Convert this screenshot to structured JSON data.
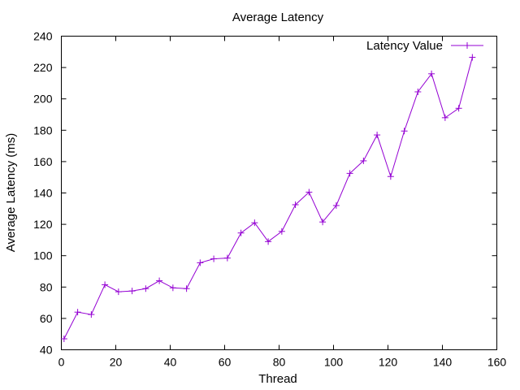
{
  "chart_data": {
    "type": "line",
    "title": "Average Latency",
    "xlabel": "Thread",
    "ylabel": "Average Latency (ms)",
    "xlim": [
      0,
      160
    ],
    "ylim": [
      40,
      240
    ],
    "x_ticks": [
      0,
      20,
      40,
      60,
      80,
      100,
      120,
      140,
      160
    ],
    "y_ticks": [
      40,
      60,
      80,
      100,
      120,
      140,
      160,
      180,
      200,
      220,
      240
    ],
    "grid": false,
    "legend_position": "top-right",
    "series": [
      {
        "name": "Latency Value",
        "color": "#9400d3",
        "marker": "plus",
        "x": [
          1,
          6,
          11,
          16,
          21,
          26,
          31,
          36,
          41,
          46,
          51,
          56,
          61,
          66,
          71,
          76,
          81,
          86,
          91,
          96,
          101,
          106,
          111,
          116,
          121,
          126,
          131,
          136,
          141,
          146,
          151
        ],
        "y": [
          47,
          64,
          62.5,
          81.5,
          77,
          77.5,
          79,
          84,
          79.5,
          79,
          95.5,
          98,
          98.5,
          114.5,
          121,
          109,
          115.5,
          132.5,
          140.5,
          121.5,
          132,
          152.5,
          160.5,
          177,
          150.5,
          179.5,
          204.5,
          216,
          188,
          194,
          226.5
        ]
      }
    ]
  }
}
